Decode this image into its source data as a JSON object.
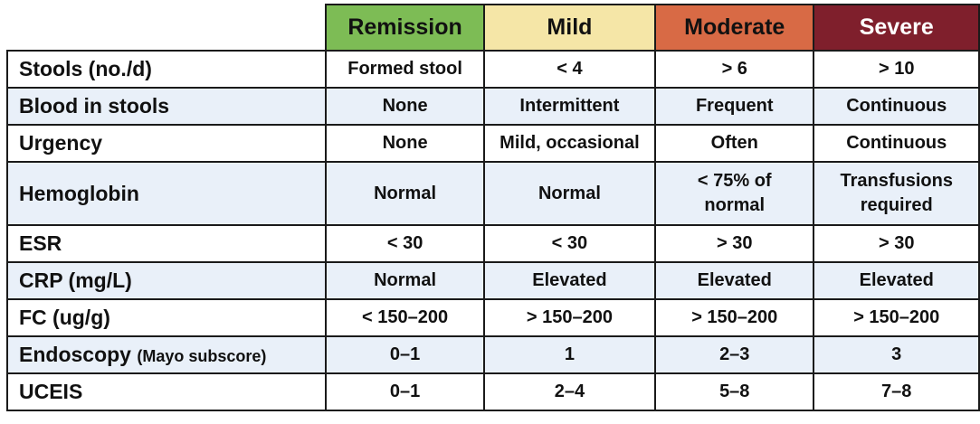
{
  "columns": {
    "remission": "Remission",
    "mild": "Mild",
    "moderate": "Moderate",
    "severe": "Severe"
  },
  "rows": [
    {
      "label": "Stools (no./d)",
      "sub": "",
      "values": [
        "Formed stool",
        "< 4",
        "> 6",
        "> 10"
      ],
      "shaded": false
    },
    {
      "label": "Blood in stools",
      "sub": "",
      "values": [
        "None",
        "Intermittent",
        "Frequent",
        "Continuous"
      ],
      "shaded": true
    },
    {
      "label": "Urgency",
      "sub": "",
      "values": [
        "None",
        "Mild, occasional",
        "Often",
        "Continuous"
      ],
      "shaded": false
    },
    {
      "label": "Hemoglobin",
      "sub": "",
      "values": [
        "Normal",
        "Normal",
        "< 75% of normal",
        "Transfusions required"
      ],
      "shaded": true
    },
    {
      "label": "ESR",
      "sub": "",
      "values": [
        "< 30",
        "< 30",
        "> 30",
        "> 30"
      ],
      "shaded": false
    },
    {
      "label": "CRP (mg/L)",
      "sub": "",
      "values": [
        "Normal",
        "Elevated",
        "Elevated",
        "Elevated"
      ],
      "shaded": true
    },
    {
      "label": "FC (ug/g)",
      "sub": "",
      "values": [
        "< 150–200",
        "> 150–200",
        "> 150–200",
        "> 150–200"
      ],
      "shaded": false
    },
    {
      "label": "Endoscopy",
      "sub": "(Mayo subscore)",
      "values": [
        "0–1",
        "1",
        "2–3",
        "3"
      ],
      "shaded": true
    },
    {
      "label": "UCEIS",
      "sub": "",
      "values": [
        "0–1",
        "2–4",
        "5–8",
        "7–8"
      ],
      "shaded": false
    }
  ]
}
